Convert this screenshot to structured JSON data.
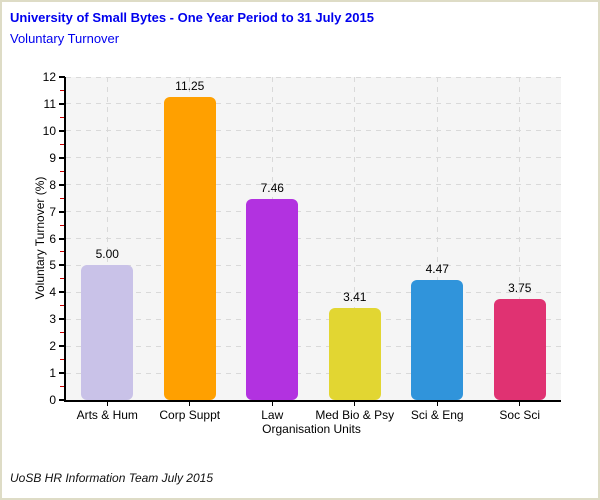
{
  "header": {
    "title": "University of Small Bytes - One Year Period to 31 July 2015",
    "subtitle": "Voluntary Turnover"
  },
  "footer": {
    "credit": "UoSB HR Information Team July 2015"
  },
  "colors": {
    "title_blue": "#0000ee",
    "page_border_tan": "#dedcc6",
    "plot_background": "#f5f5f5",
    "gridline_grey": "#d9d9d9",
    "axis_black": "#000000",
    "minor_tick_red": "#cc0000"
  },
  "chart_data": {
    "type": "bar",
    "title": "University of Small Bytes - One Year Period to 31 July 2015",
    "subtitle": "Voluntary Turnover",
    "xlabel": "Organisation Units",
    "ylabel": "Voluntary Turnover (%)",
    "ylim": [
      0,
      12
    ],
    "ytick_step": 1,
    "yminor_tick_step": 0.5,
    "grid": "dashed horizontal at each unit and vertical at each category; plot background light grey",
    "legend": "none",
    "categories": [
      "Arts & Hum",
      "Corp Suppt",
      "Law",
      "Med Bio & Psy",
      "Sci & Eng",
      "Soc Sci"
    ],
    "values": [
      5.0,
      11.25,
      7.46,
      3.41,
      4.47,
      3.75
    ],
    "value_labels": [
      "5.00",
      "11.25",
      "7.46",
      "3.41",
      "4.47",
      "3.75"
    ],
    "bar_colors": [
      "#c9c2e8",
      "#ffa000",
      "#b232e0",
      "#e2d632",
      "#3094db",
      "#e03272"
    ]
  }
}
